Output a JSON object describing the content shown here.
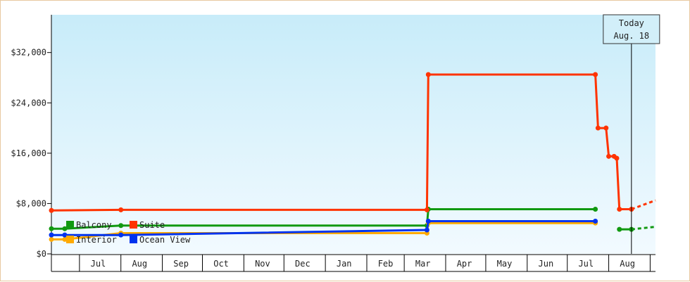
{
  "chart_data": {
    "type": "line",
    "title": "",
    "xlabel": "",
    "ylabel": "",
    "ylim": [
      0,
      38000
    ],
    "yticks": [
      {
        "value": 0,
        "label": "$0"
      },
      {
        "value": 8000,
        "label": "$8,000"
      },
      {
        "value": 16000,
        "label": "$16,000"
      },
      {
        "value": 24000,
        "label": "$24,000"
      },
      {
        "value": 32000,
        "label": "$32,000"
      }
    ],
    "x_range": [
      "2024-06-10",
      "2025-09-05"
    ],
    "month_ticks": [
      {
        "label": "Jul",
        "date": "2024-07-15"
      },
      {
        "label": "Aug",
        "date": "2024-08-15"
      },
      {
        "label": "Sep",
        "date": "2024-09-15"
      },
      {
        "label": "Oct",
        "date": "2024-10-15"
      },
      {
        "label": "Nov",
        "date": "2024-11-15"
      },
      {
        "label": "Dec",
        "date": "2024-12-15"
      },
      {
        "label": "Jan",
        "date": "2025-01-15"
      },
      {
        "label": "Feb",
        "date": "2025-02-15"
      },
      {
        "label": "Mar",
        "date": "2025-03-15"
      },
      {
        "label": "Apr",
        "date": "2025-04-15"
      },
      {
        "label": "May",
        "date": "2025-05-15"
      },
      {
        "label": "Jun",
        "date": "2025-06-15"
      },
      {
        "label": "Jul",
        "date": "2025-07-15"
      },
      {
        "label": "Aug",
        "date": "2025-08-15"
      }
    ],
    "month_boundaries": [
      "2024-07-01",
      "2024-08-01",
      "2024-09-01",
      "2024-10-01",
      "2024-11-01",
      "2024-12-01",
      "2025-01-01",
      "2025-02-01",
      "2025-03-01",
      "2025-04-01",
      "2025-05-01",
      "2025-06-01",
      "2025-07-01",
      "2025-08-01",
      "2025-09-01"
    ],
    "today": {
      "date": "2025-08-18",
      "line1": "Today",
      "line2": "Aug. 18"
    },
    "legend_placement": "bottom-left",
    "series": [
      {
        "name": "Balcony",
        "color": "#119911",
        "points": [
          [
            "2024-06-10",
            4000
          ],
          [
            "2024-06-20",
            4000
          ],
          [
            "2024-08-01",
            4500
          ],
          [
            "2025-03-18",
            4500
          ],
          [
            "2025-03-19",
            7100
          ],
          [
            "2025-07-22",
            7100
          ]
        ],
        "points2": [
          [
            "2025-08-09",
            3900
          ],
          [
            "2025-08-18",
            3900
          ]
        ],
        "forecast": [
          [
            "2025-08-18",
            3900
          ],
          [
            "2025-09-05",
            4300
          ]
        ]
      },
      {
        "name": "Suite",
        "color": "#ff3300",
        "points": [
          [
            "2024-06-10",
            6900
          ],
          [
            "2024-08-01",
            7000
          ],
          [
            "2025-03-18",
            7000
          ],
          [
            "2025-03-19",
            28500
          ],
          [
            "2025-07-22",
            28500
          ],
          [
            "2025-07-24",
            20000
          ],
          [
            "2025-07-30",
            20000
          ],
          [
            "2025-08-01",
            15500
          ],
          [
            "2025-08-05",
            15500
          ],
          [
            "2025-08-07",
            15200
          ],
          [
            "2025-08-09",
            7100
          ],
          [
            "2025-08-18",
            7100
          ]
        ],
        "forecast": [
          [
            "2025-08-18",
            7100
          ],
          [
            "2025-09-05",
            8500
          ]
        ]
      },
      {
        "name": "Interior",
        "color": "#ffaa00",
        "points": [
          [
            "2024-06-10",
            2300
          ],
          [
            "2024-06-20",
            2300
          ],
          [
            "2024-08-01",
            3300
          ],
          [
            "2025-03-18",
            3300
          ],
          [
            "2025-03-19",
            4900
          ],
          [
            "2025-07-22",
            4900
          ]
        ]
      },
      {
        "name": "Ocean View",
        "color": "#0033ee",
        "points": [
          [
            "2024-06-10",
            3000
          ],
          [
            "2024-06-20",
            3000
          ],
          [
            "2024-08-01",
            3000
          ],
          [
            "2025-03-18",
            3800
          ],
          [
            "2025-03-19",
            5200
          ],
          [
            "2025-07-22",
            5200
          ]
        ]
      }
    ]
  }
}
